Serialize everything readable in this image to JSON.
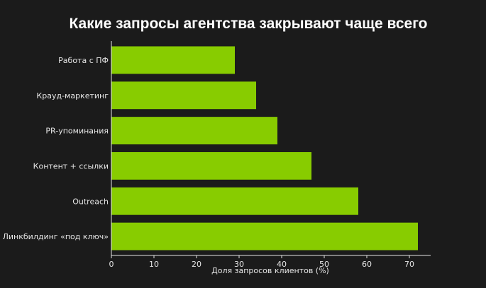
{
  "chart_data": {
    "type": "bar",
    "orientation": "horizontal",
    "title": "Какие запросы агентства закрывают чаще всего",
    "xlabel": "Доля запросов клиентов (%)",
    "ylabel": "",
    "categories": [
      "Работа с ПФ",
      "Крауд-маркетинг",
      "PR-упоминания",
      "Контент + ссылки",
      "Outreach",
      "Линкбилдинг «под ключ»"
    ],
    "values": [
      29,
      34,
      39,
      47,
      58,
      72
    ],
    "xlim": [
      0,
      75
    ],
    "xticks": [
      "0",
      "10",
      "20",
      "30",
      "40",
      "50",
      "60",
      "70"
    ],
    "grid": false,
    "bar_color": "#88cc00",
    "background_color": "#1b1b1b",
    "text_color": "#e6e6e6"
  }
}
